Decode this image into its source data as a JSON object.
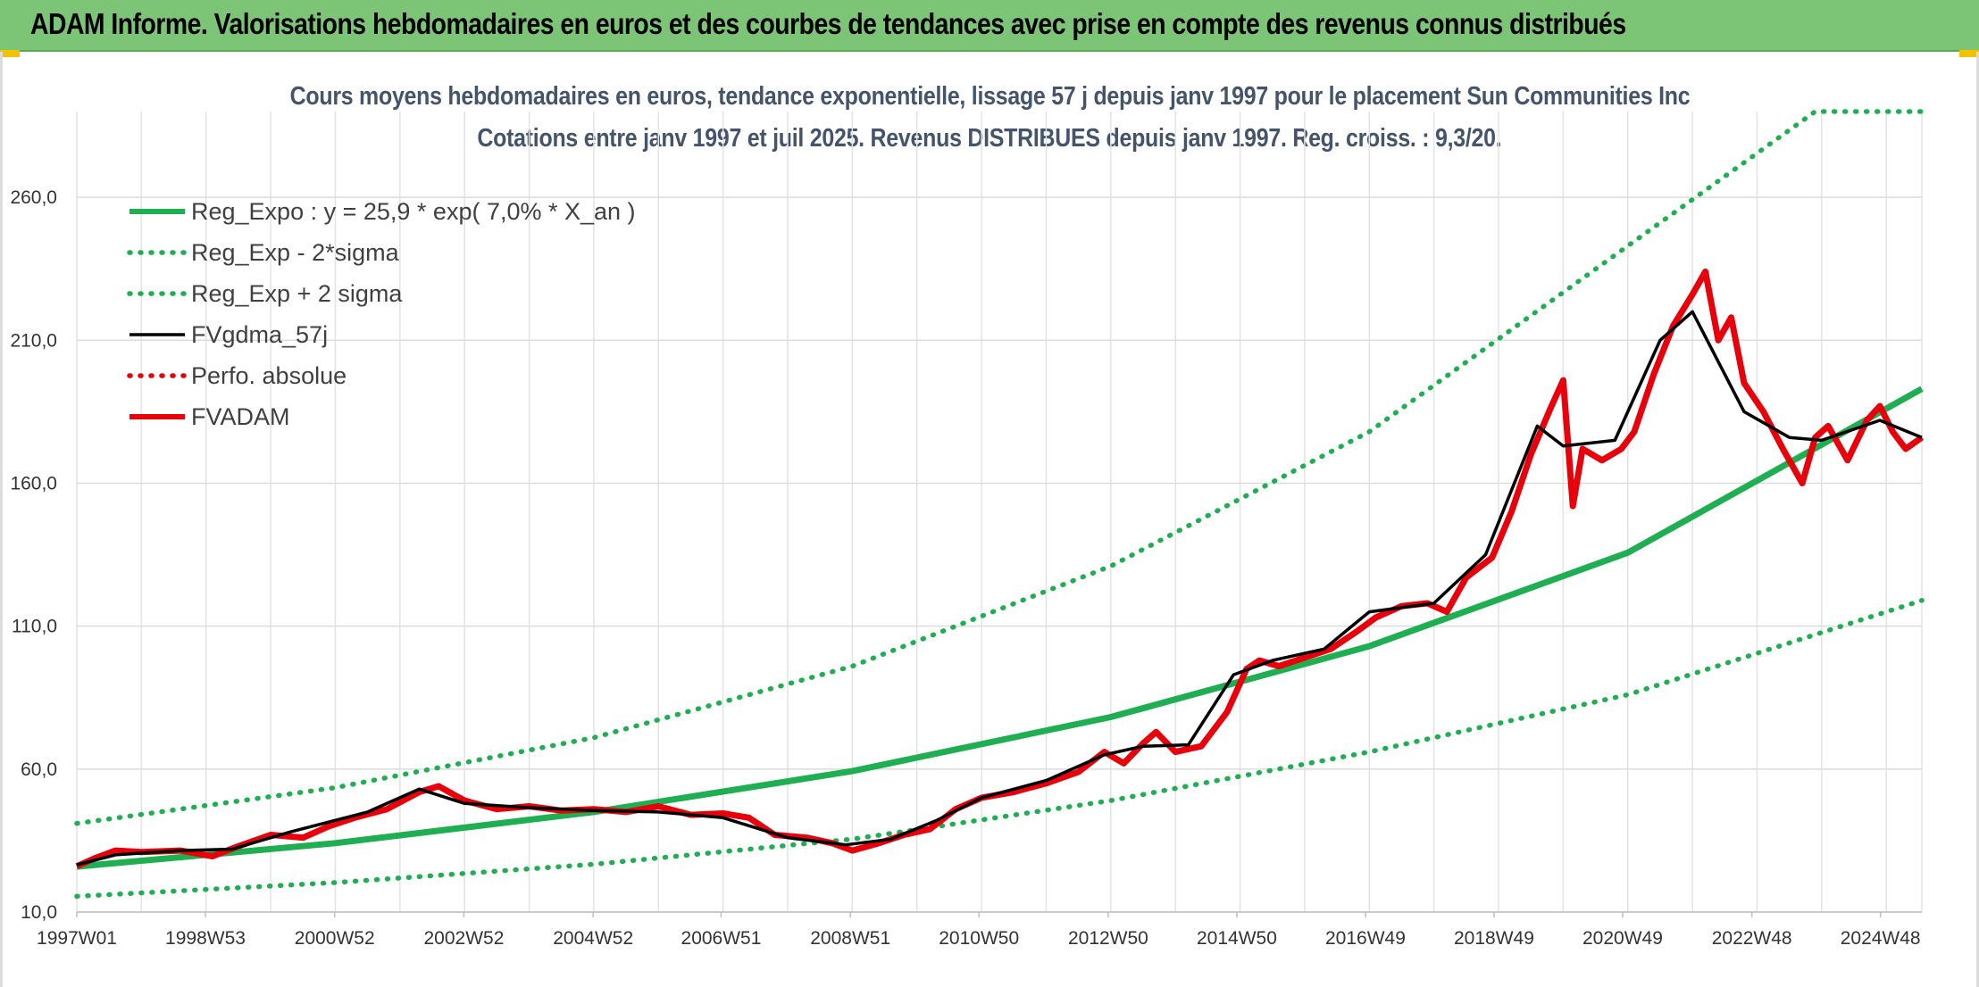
{
  "header": {
    "title": "ADAM Informe. Valorisations hebdomadaires en euros et des courbes de tendances avec prise en compte des revenus connus distribués"
  },
  "chart_data": {
    "type": "line",
    "title": "Cours moyens hebdomadaires en euros, tendance exponentielle, lissage 57 j depuis janv 1997 pour le placement Sun Communities Inc",
    "subtitle": "Cotations entre janv 1997 et juil 2025. Revenus DISTRIBUES depuis janv 1997. Reg. croiss. : 9,3/20.",
    "xlabel": "",
    "ylabel": "",
    "ylim": [
      10,
      290
    ],
    "xlim": [
      1997.0,
      2025.55
    ],
    "y_ticks": [
      10,
      60,
      110,
      160,
      210,
      260
    ],
    "y_tick_labels": [
      "10,0",
      "60,0",
      "110,0",
      "160,0",
      "210,0",
      "260,0"
    ],
    "x_tick_positions": [
      1997.0,
      1998.99,
      2000.99,
      2002.99,
      2004.99,
      2006.97,
      2008.97,
      2010.96,
      2012.96,
      2014.95,
      2016.94,
      2018.93,
      2020.92,
      2022.92,
      2024.91
    ],
    "x_tick_labels": [
      "1997W01",
      "1998W53",
      "2000W52",
      "2002W52",
      "2004W52",
      "2006W51",
      "2008W51",
      "2010W50",
      "2012W50",
      "2014W50",
      "2016W49",
      "2018W49",
      "2020W49",
      "2022W48",
      "2024W48"
    ],
    "grid": true,
    "legend_position": "top-left",
    "series": [
      {
        "name": "Reg_Expo : y = 25,9 * exp( 7,0% *  X_an )",
        "color": "#1fae52",
        "style": "solid-thick",
        "points": [
          [
            1997.0,
            25.9
          ],
          [
            2001.0,
            34.1
          ],
          [
            2005.0,
            45.0
          ],
          [
            2009.0,
            59.3
          ],
          [
            2013.0,
            78.2
          ],
          [
            2017.0,
            103.0
          ],
          [
            2021.0,
            135.7
          ],
          [
            2025.55,
            193.0
          ]
        ]
      },
      {
        "name": "Reg_Exp - 2*sigma",
        "color": "#1fae52",
        "style": "dotted",
        "points": [
          [
            1997.0,
            15.5
          ],
          [
            2001.0,
            20.3
          ],
          [
            2005.0,
            26.7
          ],
          [
            2009.0,
            35.5
          ],
          [
            2013.0,
            49.0
          ],
          [
            2017.0,
            66.0
          ],
          [
            2021.0,
            86.0
          ],
          [
            2025.55,
            119.0
          ]
        ]
      },
      {
        "name": "Reg_Exp + 2 sigma",
        "color": "#1fae52",
        "style": "dotted",
        "points": [
          [
            1997.0,
            41.0
          ],
          [
            2001.0,
            53.5
          ],
          [
            2005.0,
            71.0
          ],
          [
            2009.0,
            96.0
          ],
          [
            2013.0,
            131.0
          ],
          [
            2017.0,
            178.0
          ],
          [
            2021.0,
            243.0
          ],
          [
            2023.9,
            290.0
          ],
          [
            2025.55,
            290.0
          ]
        ]
      },
      {
        "name": "FVgdma_57j",
        "color": "#000000",
        "style": "solid",
        "points": [
          [
            1997.0,
            26.5
          ],
          [
            1997.6,
            30.0
          ],
          [
            1998.6,
            31.5
          ],
          [
            1999.4,
            32.0
          ],
          [
            2000.3,
            38.0
          ],
          [
            2001.5,
            45.0
          ],
          [
            2002.3,
            53.0
          ],
          [
            2003.0,
            48.0
          ],
          [
            2004.0,
            46.5
          ],
          [
            2005.0,
            45.5
          ],
          [
            2006.0,
            45.0
          ],
          [
            2007.0,
            43.0
          ],
          [
            2008.0,
            36.0
          ],
          [
            2008.9,
            33.5
          ],
          [
            2009.6,
            35.5
          ],
          [
            2010.3,
            42.0
          ],
          [
            2011.0,
            50.0
          ],
          [
            2012.0,
            56.0
          ],
          [
            2012.9,
            65.0
          ],
          [
            2013.5,
            68.0
          ],
          [
            2014.2,
            68.5
          ],
          [
            2014.9,
            93.0
          ],
          [
            2015.5,
            98.0
          ],
          [
            2016.3,
            102.0
          ],
          [
            2017.0,
            115.0
          ],
          [
            2018.0,
            118.0
          ],
          [
            2018.8,
            135.0
          ],
          [
            2019.6,
            180.0
          ],
          [
            2020.0,
            173.0
          ],
          [
            2020.8,
            175.0
          ],
          [
            2021.5,
            210.0
          ],
          [
            2022.0,
            220.0
          ],
          [
            2022.8,
            185.0
          ],
          [
            2023.5,
            176.0
          ],
          [
            2024.0,
            175.0
          ],
          [
            2024.9,
            182.0
          ],
          [
            2025.55,
            176.0
          ]
        ]
      },
      {
        "name": "Perfo. absolue",
        "color": "#e8000b",
        "style": "dotted",
        "points": []
      },
      {
        "name": "FVADAM",
        "color": "#e8000b",
        "style": "solid-thick",
        "points": [
          [
            1997.0,
            26.0
          ],
          [
            1997.3,
            29.0
          ],
          [
            1997.6,
            31.5
          ],
          [
            1998.0,
            31.0
          ],
          [
            1998.6,
            31.5
          ],
          [
            1999.1,
            29.5
          ],
          [
            1999.5,
            33.0
          ],
          [
            2000.0,
            37.0
          ],
          [
            2000.5,
            36.0
          ],
          [
            2000.9,
            40.0
          ],
          [
            2001.3,
            43.0
          ],
          [
            2001.8,
            46.0
          ],
          [
            2002.3,
            52.0
          ],
          [
            2002.6,
            54.0
          ],
          [
            2003.0,
            49.0
          ],
          [
            2003.5,
            46.0
          ],
          [
            2004.0,
            47.0
          ],
          [
            2004.5,
            45.5
          ],
          [
            2005.0,
            46.0
          ],
          [
            2005.5,
            45.0
          ],
          [
            2006.0,
            47.0
          ],
          [
            2006.5,
            44.0
          ],
          [
            2007.0,
            44.5
          ],
          [
            2007.4,
            43.0
          ],
          [
            2007.8,
            37.0
          ],
          [
            2008.3,
            36.0
          ],
          [
            2008.7,
            34.0
          ],
          [
            2009.0,
            31.5
          ],
          [
            2009.4,
            34.0
          ],
          [
            2009.8,
            37.0
          ],
          [
            2010.2,
            39.0
          ],
          [
            2010.6,
            46.0
          ],
          [
            2011.0,
            50.0
          ],
          [
            2011.5,
            52.0
          ],
          [
            2012.0,
            55.0
          ],
          [
            2012.5,
            59.0
          ],
          [
            2012.9,
            66.0
          ],
          [
            2013.2,
            62.0
          ],
          [
            2013.5,
            69.0
          ],
          [
            2013.7,
            73.0
          ],
          [
            2014.0,
            66.0
          ],
          [
            2014.4,
            68.0
          ],
          [
            2014.8,
            80.0
          ],
          [
            2015.1,
            95.0
          ],
          [
            2015.3,
            98.0
          ],
          [
            2015.6,
            96.0
          ],
          [
            2016.0,
            99.0
          ],
          [
            2016.4,
            102.0
          ],
          [
            2016.8,
            108.0
          ],
          [
            2017.1,
            113.0
          ],
          [
            2017.5,
            117.0
          ],
          [
            2017.9,
            118.0
          ],
          [
            2018.2,
            115.0
          ],
          [
            2018.5,
            127.0
          ],
          [
            2018.9,
            134.0
          ],
          [
            2019.2,
            150.0
          ],
          [
            2019.5,
            170.0
          ],
          [
            2019.8,
            186.0
          ],
          [
            2020.0,
            196.0
          ],
          [
            2020.15,
            152.0
          ],
          [
            2020.3,
            172.0
          ],
          [
            2020.6,
            168.0
          ],
          [
            2020.9,
            172.0
          ],
          [
            2021.1,
            178.0
          ],
          [
            2021.4,
            198.0
          ],
          [
            2021.7,
            215.0
          ],
          [
            2022.0,
            226.0
          ],
          [
            2022.2,
            234.0
          ],
          [
            2022.4,
            210.0
          ],
          [
            2022.6,
            218.0
          ],
          [
            2022.8,
            195.0
          ],
          [
            2023.1,
            185.0
          ],
          [
            2023.4,
            172.0
          ],
          [
            2023.7,
            160.0
          ],
          [
            2023.9,
            176.0
          ],
          [
            2024.1,
            180.0
          ],
          [
            2024.4,
            168.0
          ],
          [
            2024.7,
            182.0
          ],
          [
            2024.9,
            187.0
          ],
          [
            2025.1,
            178.0
          ],
          [
            2025.3,
            172.0
          ],
          [
            2025.55,
            176.0
          ]
        ]
      }
    ]
  }
}
